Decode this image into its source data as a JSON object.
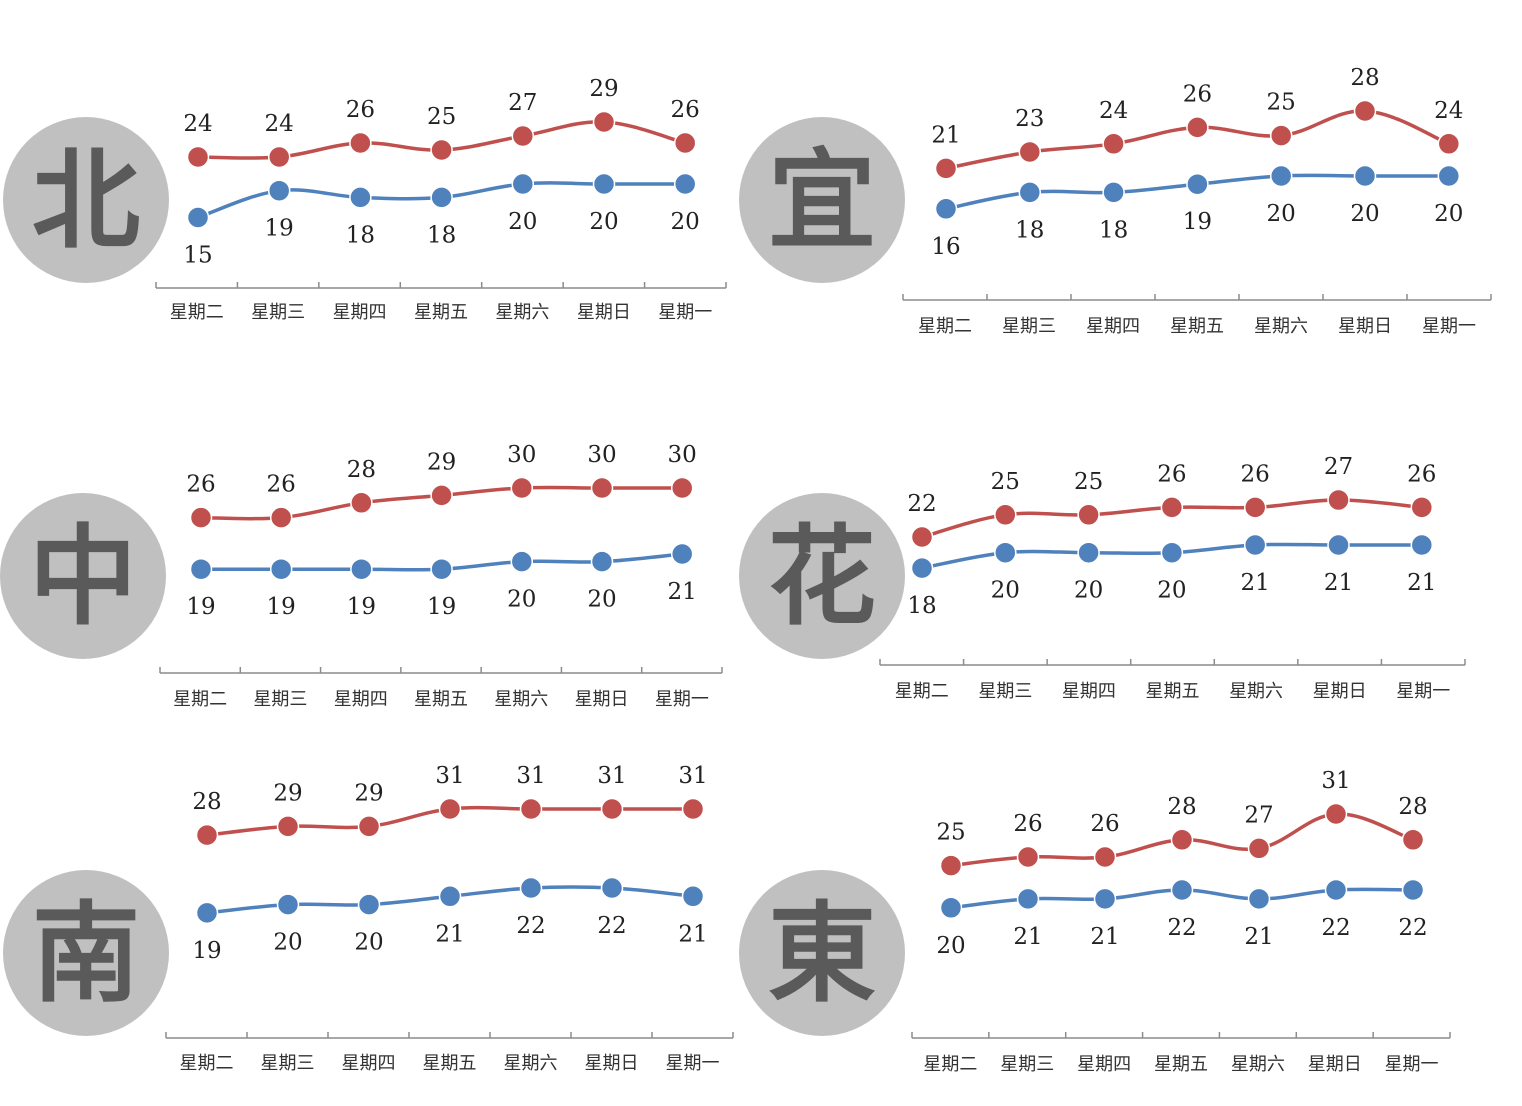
{
  "colors": {
    "high": "#c0504d",
    "low": "#4f81bd"
  },
  "chart_data": [
    {
      "type": "line",
      "region": "北",
      "categories": [
        "星期二",
        "星期三",
        "星期四",
        "星期五",
        "星期六",
        "星期日",
        "星期一"
      ],
      "series": [
        {
          "values": [
            24,
            24,
            26,
            25,
            27,
            29,
            26
          ]
        },
        {
          "values": [
            15,
            19,
            18,
            18,
            20,
            20,
            20
          ]
        }
      ]
    },
    {
      "type": "line",
      "region": "宜",
      "categories": [
        "星期二",
        "星期三",
        "星期四",
        "星期五",
        "星期六",
        "星期日",
        "星期一"
      ],
      "series": [
        {
          "values": [
            21,
            23,
            24,
            26,
            25,
            28,
            24
          ]
        },
        {
          "values": [
            16,
            18,
            18,
            19,
            20,
            20,
            20
          ]
        }
      ]
    },
    {
      "type": "line",
      "region": "中",
      "categories": [
        "星期二",
        "星期三",
        "星期四",
        "星期五",
        "星期六",
        "星期日",
        "星期一"
      ],
      "series": [
        {
          "values": [
            26,
            26,
            28,
            29,
            30,
            30,
            30
          ]
        },
        {
          "values": [
            19,
            19,
            19,
            19,
            20,
            20,
            21
          ]
        }
      ]
    },
    {
      "type": "line",
      "region": "花",
      "categories": [
        "星期二",
        "星期三",
        "星期四",
        "星期五",
        "星期六",
        "星期日",
        "星期一"
      ],
      "series": [
        {
          "values": [
            22,
            25,
            25,
            26,
            26,
            27,
            26
          ]
        },
        {
          "values": [
            18,
            20,
            20,
            20,
            21,
            21,
            21
          ]
        }
      ]
    },
    {
      "type": "line",
      "region": "南",
      "categories": [
        "星期二",
        "星期三",
        "星期四",
        "星期五",
        "星期六",
        "星期日",
        "星期一"
      ],
      "series": [
        {
          "values": [
            28,
            29,
            29,
            31,
            31,
            31,
            31
          ]
        },
        {
          "values": [
            19,
            20,
            20,
            21,
            22,
            22,
            21
          ]
        }
      ]
    },
    {
      "type": "line",
      "region": "東",
      "categories": [
        "星期二",
        "星期三",
        "星期四",
        "星期五",
        "星期六",
        "星期日",
        "星期一"
      ],
      "series": [
        {
          "values": [
            25,
            26,
            26,
            28,
            27,
            31,
            28
          ]
        },
        {
          "values": [
            20,
            21,
            21,
            22,
            21,
            22,
            22
          ]
        }
      ]
    }
  ]
}
